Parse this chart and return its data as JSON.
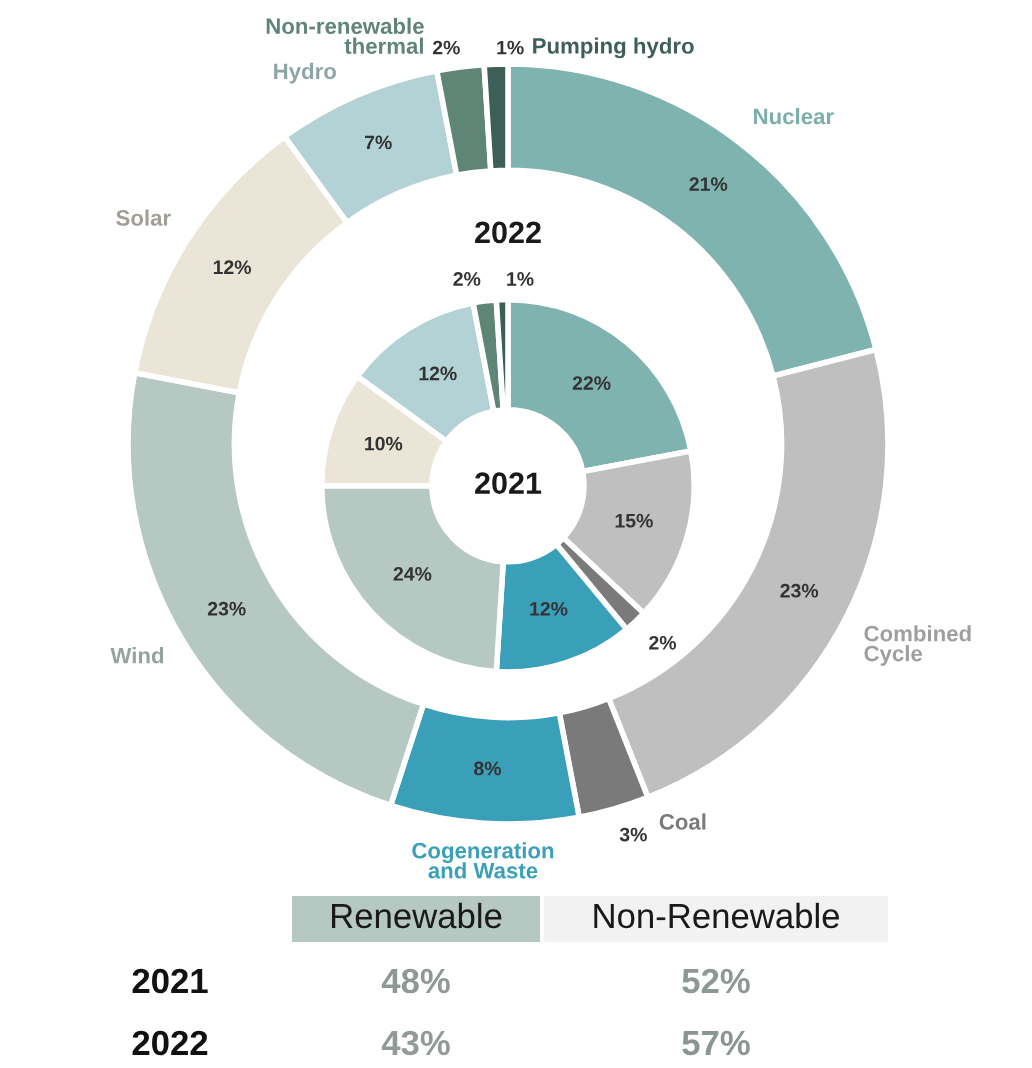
{
  "chart_data": [
    {
      "type": "donut",
      "categories": [
        "Nuclear",
        "Combined\nCycle",
        "Coal",
        "Cogeneration\nand Waste",
        "Wind",
        "Solar",
        "Hydro",
        "Non-renewable\nthermal",
        "Pumping hydro"
      ],
      "colors": [
        "#7fb3b0",
        "#bfbfbf",
        "#7a7a7a",
        "#3a9fb8",
        "#b5c8c1",
        "#ebe5d7",
        "#b3d2d5",
        "#5f8577",
        "#3d5f58"
      ],
      "series": [
        {
          "name": "2022",
          "values": [
            21,
            23,
            3,
            8,
            23,
            12,
            7,
            2,
            1
          ],
          "value_labels": [
            "21%",
            "23%",
            "3%",
            "8%",
            "23%",
            "12%",
            "7%",
            "2%",
            "1%"
          ]
        },
        {
          "name": "2021",
          "values": [
            22,
            15,
            2,
            12,
            24,
            10,
            12,
            2,
            1
          ],
          "value_labels": [
            "22%",
            "15%",
            "2%",
            "12%",
            "24%",
            "10%",
            "12%",
            "2%",
            "1%"
          ]
        }
      ]
    },
    {
      "type": "other",
      "categories": [
        "Renewable",
        "Non-Renewable"
      ],
      "colors": [
        "#b5c8c1",
        "#f2f2f2"
      ],
      "series": [
        {
          "name": "2021",
          "values": [
            48,
            52
          ],
          "value_labels": [
            "48%",
            "52%"
          ]
        },
        {
          "name": "2022",
          "values": [
            43,
            57
          ],
          "value_labels": [
            "43%",
            "57%"
          ]
        }
      ]
    }
  ]
}
